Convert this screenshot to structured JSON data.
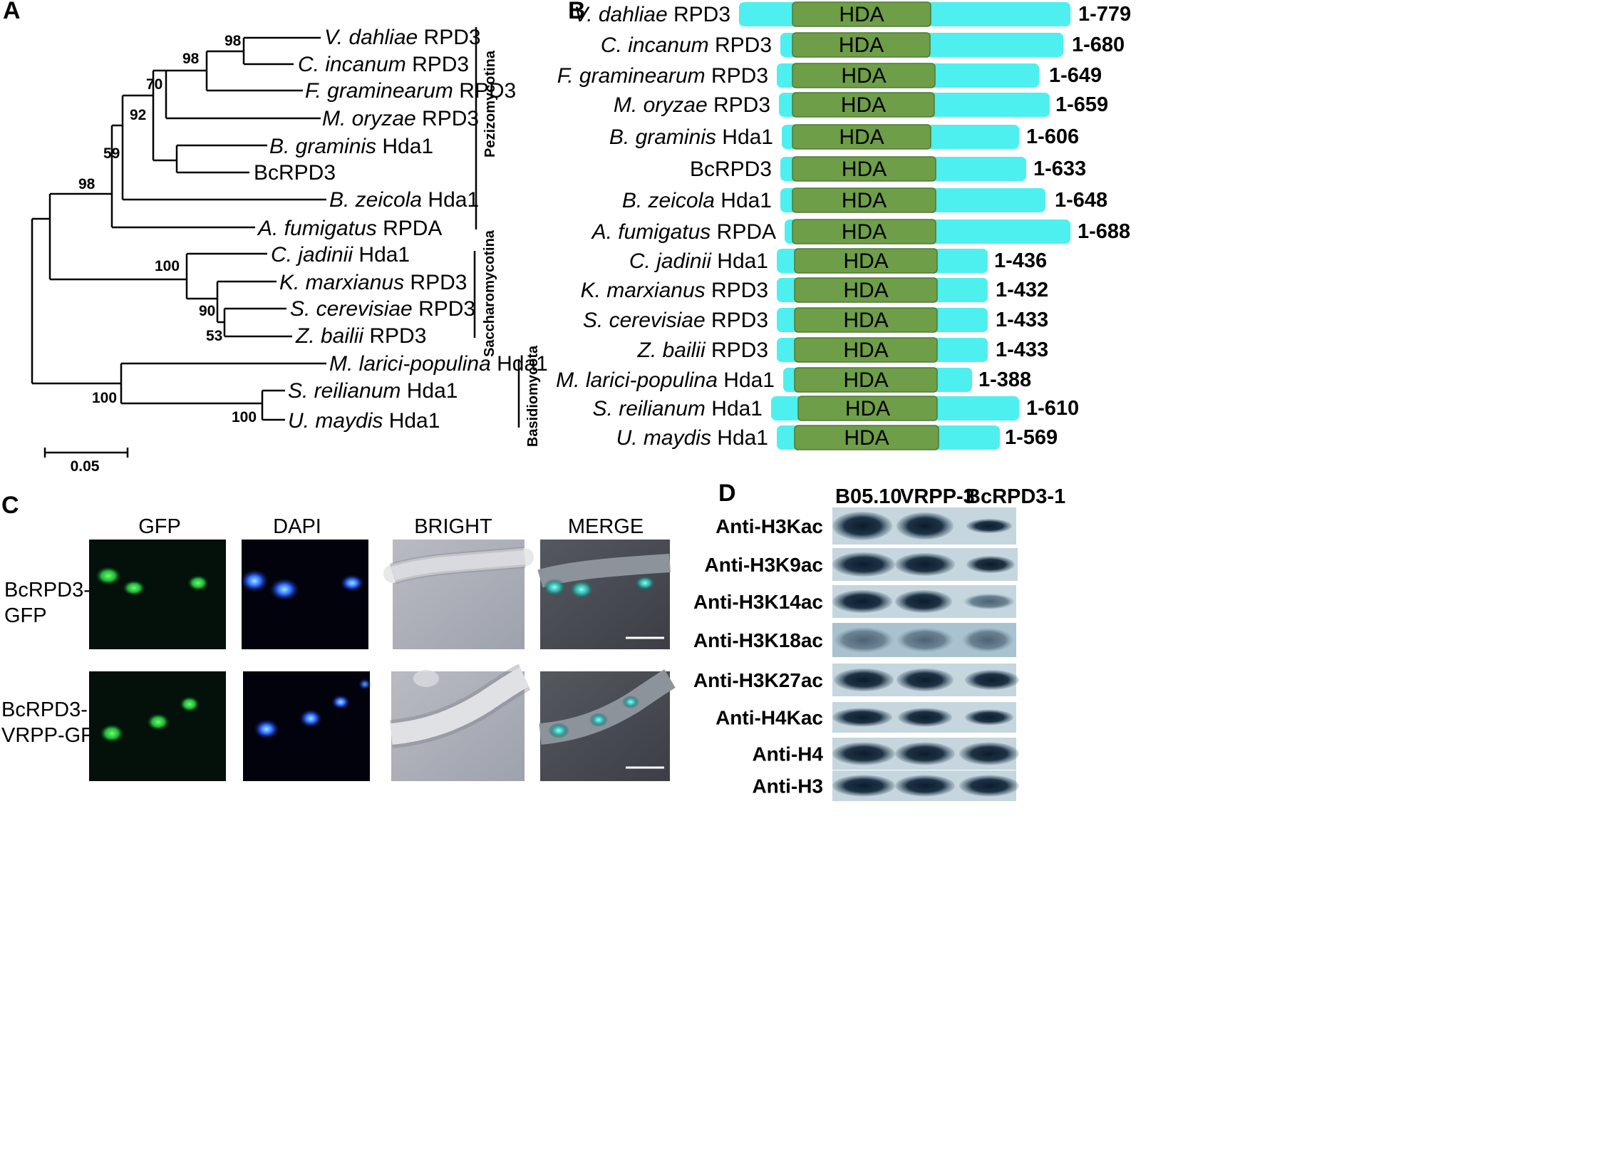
{
  "panels": {
    "a": "A",
    "b": "B",
    "c": "C",
    "d": "D"
  },
  "tree": {
    "taxa": [
      {
        "italic": "V. dahliae",
        "plain": " RPD3"
      },
      {
        "italic": "C. incanum",
        "plain": " RPD3"
      },
      {
        "italic": "F. graminearum",
        "plain": " RPD3"
      },
      {
        "italic": "M. oryzae",
        "plain": " RPD3"
      },
      {
        "italic": "B. graminis",
        "plain": " Hda1"
      },
      {
        "italic": "",
        "plain": "BcRPD3"
      },
      {
        "italic": "B. zeicola",
        "plain": " Hda1"
      },
      {
        "italic": "A. fumigatus",
        "plain": " RPDA"
      },
      {
        "italic": "C. jadinii",
        "plain": " Hda1"
      },
      {
        "italic": "K. marxianus",
        "plain": " RPD3"
      },
      {
        "italic": "S. cerevisiae",
        "plain": " RPD3"
      },
      {
        "italic": "Z. bailii",
        "plain": " RPD3"
      },
      {
        "italic": "M. larici-populina",
        "plain": " Hda1"
      },
      {
        "italic": "S. reilianum",
        "plain": " Hda1"
      },
      {
        "italic": "U. maydis",
        "plain": " Hda1"
      }
    ],
    "bootstrap": [
      "98",
      "98",
      "70",
      "92",
      "59",
      "98",
      "100",
      "90",
      "53",
      "100",
      "100"
    ],
    "groups": [
      "Pezizomycotina",
      "Saccharomycotina",
      "Basidiomycota"
    ],
    "scale_label": "0.05"
  },
  "domains": {
    "domain_label": "HDA",
    "rows": [
      {
        "italic": "V. dahliae",
        "plain": " RPD3",
        "range": "1-779"
      },
      {
        "italic": "C. incanum",
        "plain": " RPD3",
        "range": "1-680"
      },
      {
        "italic": "F. graminearum",
        "plain": " RPD3",
        "range": "1-649"
      },
      {
        "italic": "M. oryzae",
        "plain": " RPD3",
        "range": "1-659"
      },
      {
        "italic": "B. graminis",
        "plain": " Hda1",
        "range": "1-606"
      },
      {
        "italic": "",
        "plain": "BcRPD3",
        "range": "1-633"
      },
      {
        "italic": "B. zeicola",
        "plain": " Hda1",
        "range": "1-648"
      },
      {
        "italic": "A. fumigatus",
        "plain": " RPDA",
        "range": "1-688"
      },
      {
        "italic": "C. jadinii",
        "plain": " Hda1",
        "range": "1-436"
      },
      {
        "italic": "K. marxianus",
        "plain": " RPD3",
        "range": "1-432"
      },
      {
        "italic": "S. cerevisiae",
        "plain": " RPD3",
        "range": "1-433"
      },
      {
        "italic": "Z. bailii",
        "plain": " RPD3",
        "range": "1-433"
      },
      {
        "italic": "M. larici-populina",
        "plain": " Hda1",
        "range": "1-388"
      },
      {
        "italic": "S. reilianum",
        "plain": " Hda1",
        "range": "1-610"
      },
      {
        "italic": "U. maydis",
        "plain": " Hda1",
        "range": "1-569"
      }
    ],
    "colors": {
      "protein": "#4df0ee",
      "domain": "#6e9e48",
      "domain_edge": "#4f7a33"
    }
  },
  "microscopy": {
    "columns": [
      "GFP",
      "DAPI",
      "BRIGHT",
      "MERGE"
    ],
    "rows": [
      [
        "BcRPD3-",
        "GFP"
      ],
      [
        "BcRPD3-",
        "VRPP-GFP"
      ]
    ]
  },
  "western": {
    "strains": [
      "B05.10",
      "VRPP-3",
      "BcRPD3-1"
    ],
    "antibodies": [
      "Anti-H3Kac",
      "Anti-H3K9ac",
      "Anti-H3K14ac",
      "Anti-H3K18ac",
      "Anti-H3K27ac",
      "Anti-H4Kac",
      "Anti-H4",
      "Anti-H3"
    ]
  }
}
